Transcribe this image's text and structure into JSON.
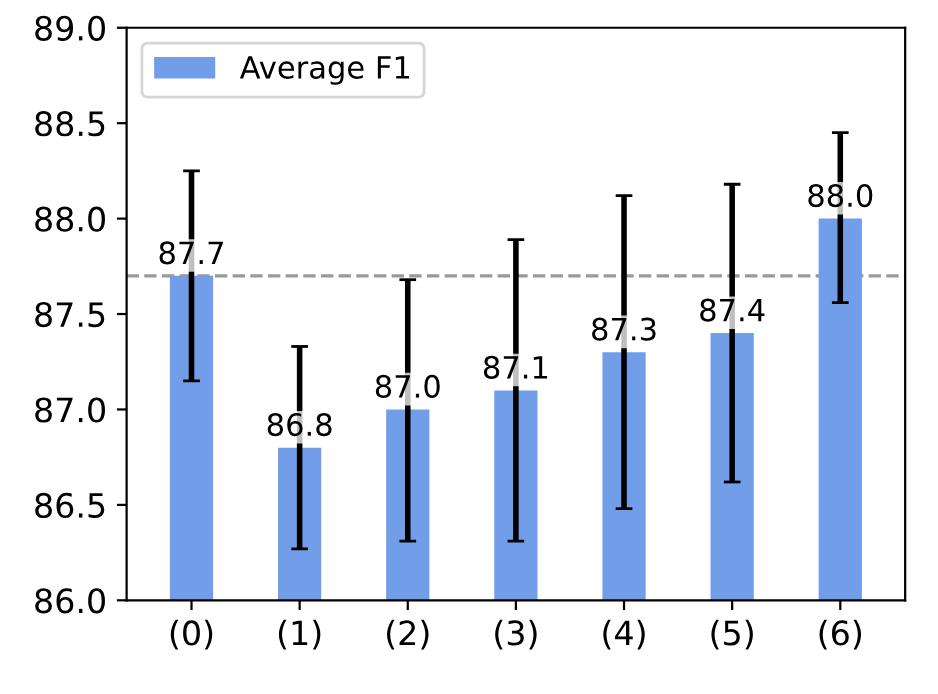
{
  "chart_data": {
    "type": "bar",
    "categories": [
      "(0)",
      "(1)",
      "(2)",
      "(3)",
      "(4)",
      "(5)",
      "(6)"
    ],
    "series": [
      {
        "name": "Average F1",
        "color": "#729ee9",
        "values": [
          87.7,
          86.8,
          87.0,
          87.1,
          87.3,
          87.4,
          88.0
        ],
        "errors": [
          [
            87.15,
            88.25
          ],
          [
            86.27,
            87.33
          ],
          [
            86.31,
            87.68
          ],
          [
            86.31,
            87.89
          ],
          [
            86.48,
            88.12
          ],
          [
            86.62,
            88.18
          ],
          [
            87.56,
            88.45
          ]
        ]
      }
    ],
    "value_labels": [
      "87.7",
      "86.8",
      "87.0",
      "87.1",
      "87.3",
      "87.4",
      "88.0"
    ],
    "ylim": [
      86.0,
      89.0
    ],
    "yticks": [
      {
        "value": 86.0,
        "label": "86.0"
      },
      {
        "value": 86.5,
        "label": "86.5"
      },
      {
        "value": 87.0,
        "label": "87.0"
      },
      {
        "value": 87.5,
        "label": "87.5"
      },
      {
        "value": 88.0,
        "label": "88.0"
      },
      {
        "value": 88.5,
        "label": "88.5"
      },
      {
        "value": 89.0,
        "label": "89.0"
      }
    ],
    "ref_lines": [
      {
        "axis": "y",
        "value": 87.7,
        "label": null,
        "color": "#999999",
        "line_style": "dashed"
      }
    ],
    "grid": false,
    "legend": "top left"
  }
}
